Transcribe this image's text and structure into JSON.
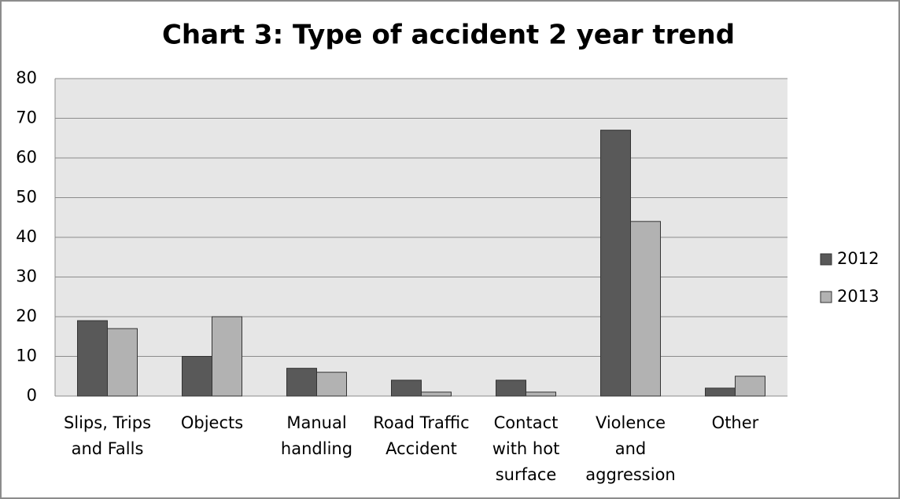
{
  "chart_data": {
    "type": "bar",
    "title": "Chart 3: Type of accident 2 year trend",
    "categories": [
      "Slips, Trips\nand Falls",
      "Objects",
      "Manual\nhandling",
      "Road Traffic\nAccident",
      "Contact\nwith hot\nsurface",
      "Violence\nand\naggression",
      "Other"
    ],
    "series": [
      {
        "name": "2012",
        "color": "#595959",
        "values": [
          19,
          10,
          7,
          4,
          4,
          67,
          2
        ]
      },
      {
        "name": "2013",
        "color": "#b2b2b2",
        "values": [
          17,
          20,
          6,
          1,
          1,
          44,
          5
        ]
      }
    ],
    "ylim": [
      0,
      80
    ],
    "yticks": [
      0,
      10,
      20,
      30,
      40,
      50,
      60,
      70,
      80
    ],
    "grid": true,
    "legend": "right"
  }
}
